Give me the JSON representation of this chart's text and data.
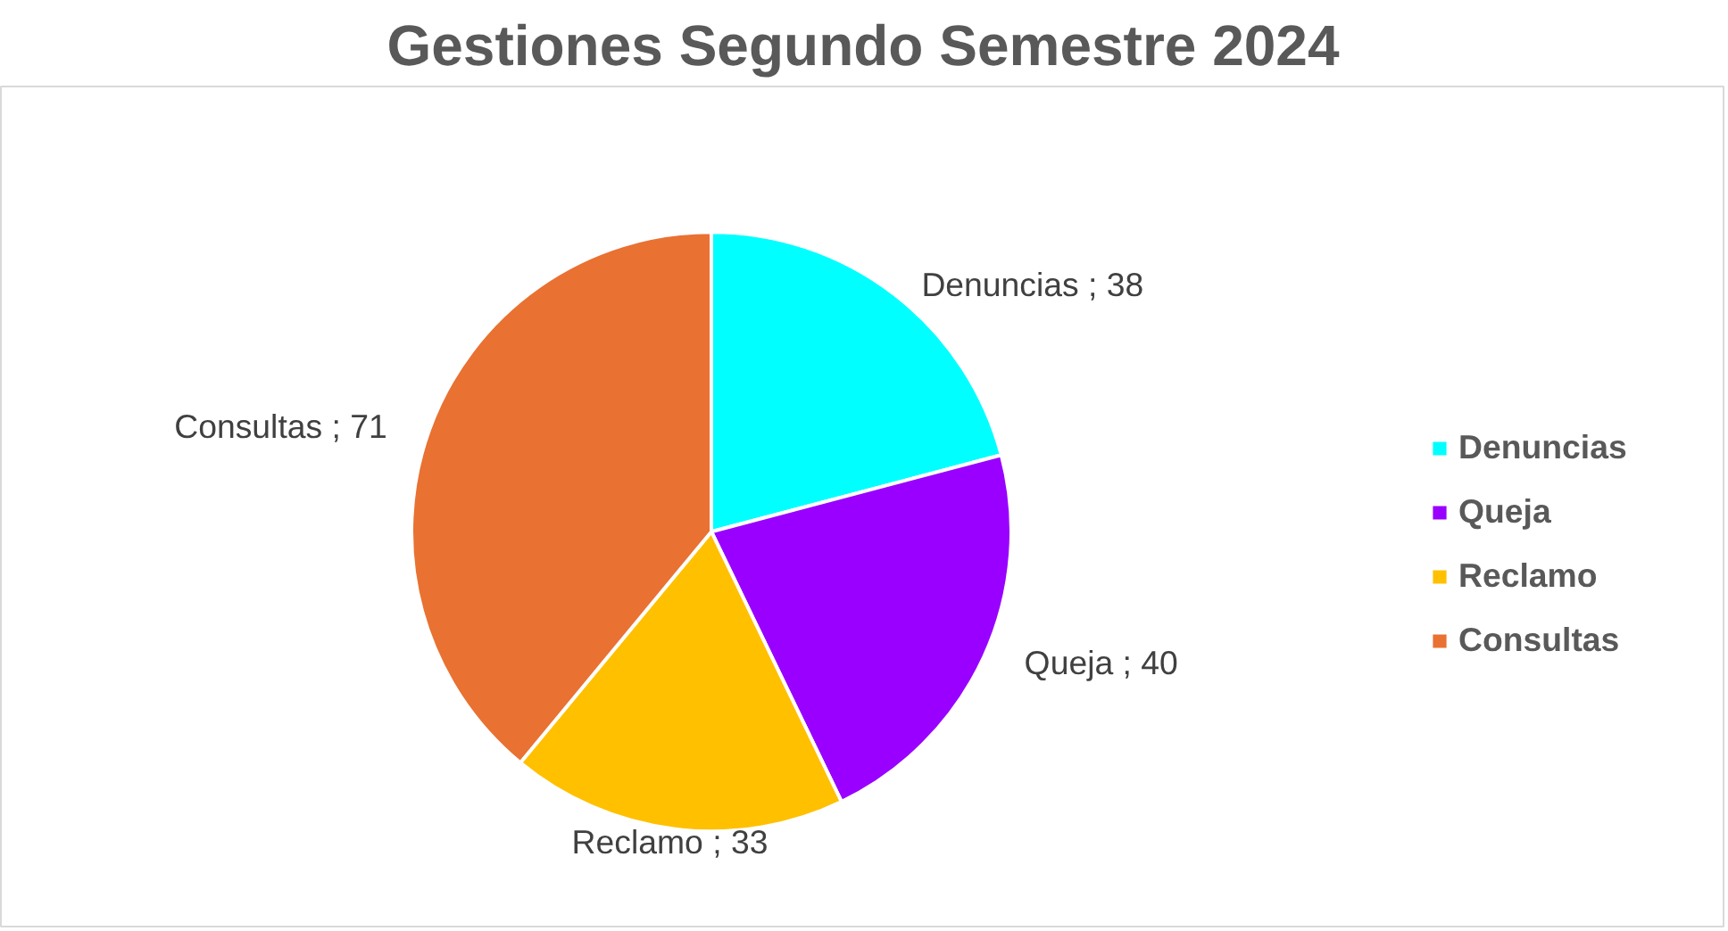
{
  "chart_data": {
    "type": "pie",
    "title": "Gestiones Segundo Semestre 2024",
    "categories": [
      "Denuncias",
      "Queja",
      "Reclamo",
      "Consultas"
    ],
    "values": [
      38,
      40,
      33,
      71
    ],
    "colors": [
      "#00ffff",
      "#9900ff",
      "#ffc000",
      "#e97132"
    ],
    "value_labels": [
      "Denuncias ; 38",
      "Queja ; 40",
      "Reclamo ; 33",
      "Consultas ; 71"
    ],
    "legend": "right"
  }
}
